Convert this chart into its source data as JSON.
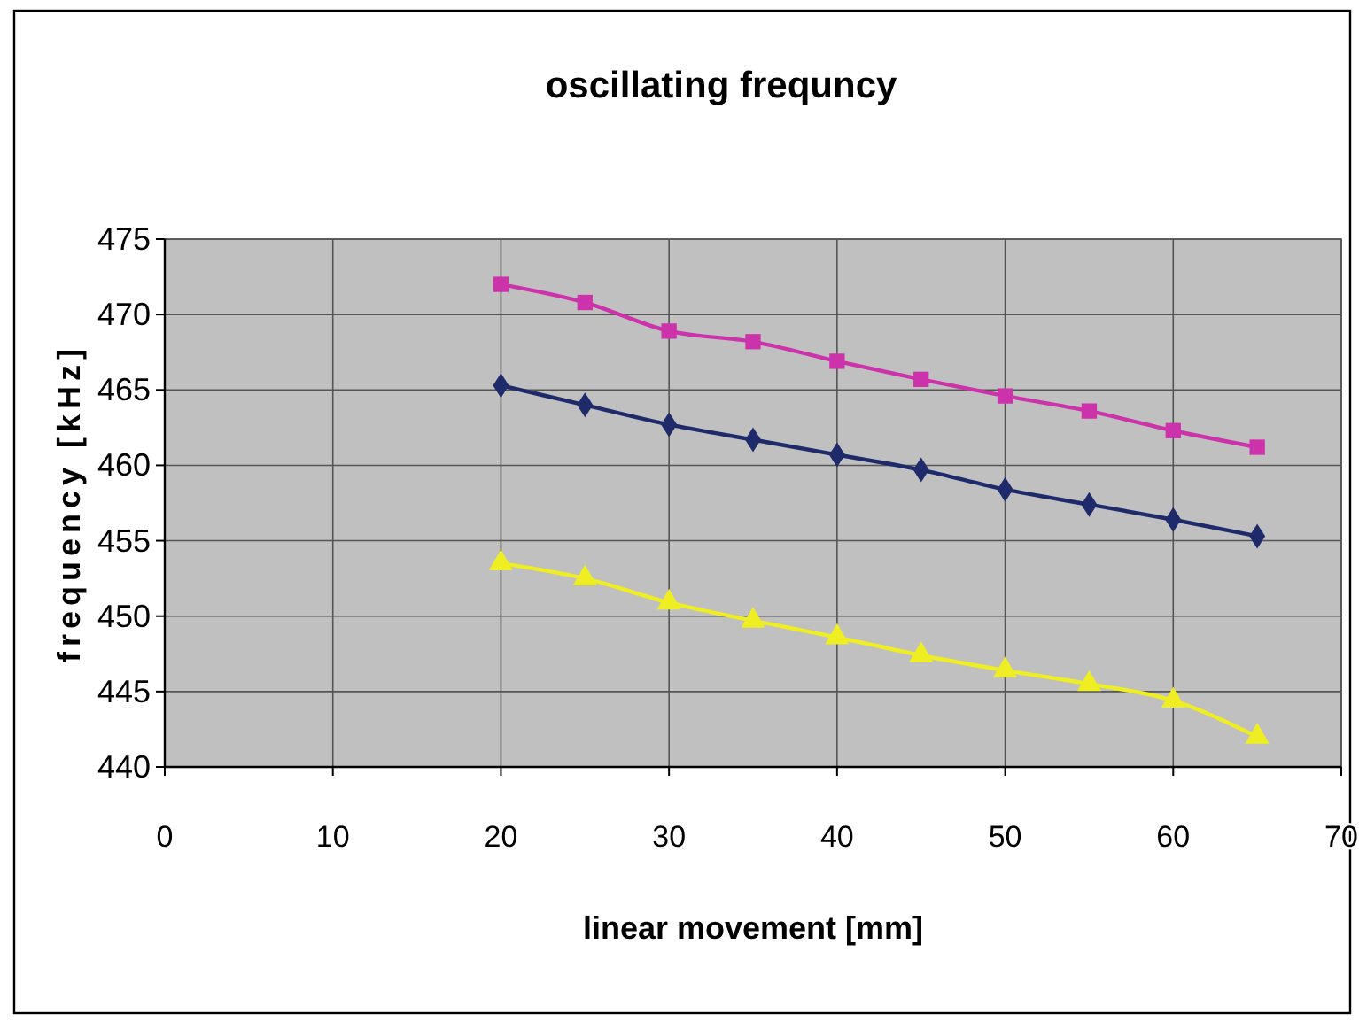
{
  "chart_data": {
    "type": "line",
    "title": "oscillating frequncy",
    "xlabel": "linear movement [mm]",
    "ylabel": "frequency [kHz]",
    "x": [
      20,
      25,
      30,
      35,
      40,
      45,
      50,
      55,
      60,
      65
    ],
    "series": [
      {
        "color": "#cc33aa",
        "marker": "square",
        "values": [
          472.0,
          470.8,
          468.9,
          468.2,
          466.9,
          465.7,
          464.6,
          463.6,
          462.3,
          461.2
        ]
      },
      {
        "color": "#1f2a6b",
        "marker": "diamond",
        "values": [
          465.3,
          464.0,
          462.7,
          461.7,
          460.7,
          459.7,
          458.4,
          457.4,
          456.4,
          455.3
        ]
      },
      {
        "color": "#eeee22",
        "marker": "triangle",
        "values": [
          453.5,
          452.5,
          450.9,
          449.7,
          448.6,
          447.4,
          446.4,
          445.5,
          444.4,
          442.0
        ]
      }
    ],
    "xlim": [
      0,
      70
    ],
    "xticks": [
      0,
      10,
      20,
      30,
      40,
      50,
      60,
      70
    ],
    "ylim": [
      440,
      475
    ],
    "yticks": [
      440,
      445,
      450,
      455,
      460,
      465,
      470,
      475
    ],
    "grid": true,
    "line_style": "solid"
  }
}
